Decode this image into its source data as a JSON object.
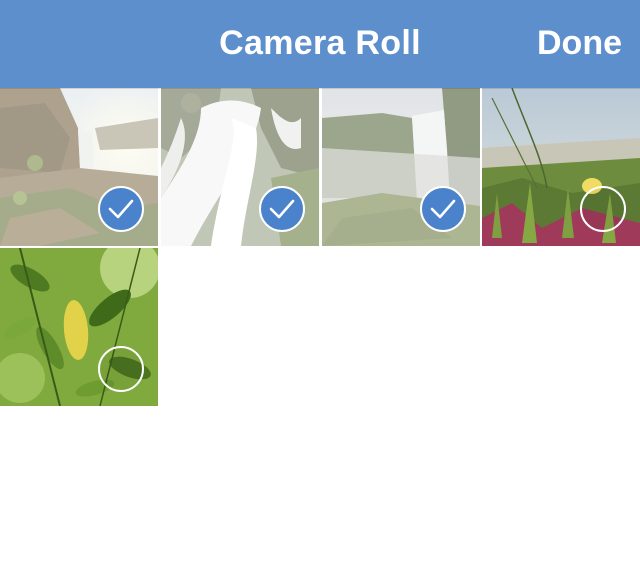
{
  "navbar": {
    "title": "Camera Roll",
    "done_label": "Done",
    "color": "#5d8fcc"
  },
  "photos": [
    {
      "subject": "waterfall-coast",
      "selected": true
    },
    {
      "subject": "waterfall-rocks",
      "selected": true
    },
    {
      "subject": "waterfall-cliff",
      "selected": true
    },
    {
      "subject": "beach-grass",
      "selected": false
    },
    {
      "subject": "green-leaves",
      "selected": false
    }
  ],
  "colors": {
    "accent": "#4a83cc",
    "background": "#ffffff"
  },
  "icons": {
    "selected": "checkmark-icon",
    "unselected": "empty-circle-icon"
  }
}
